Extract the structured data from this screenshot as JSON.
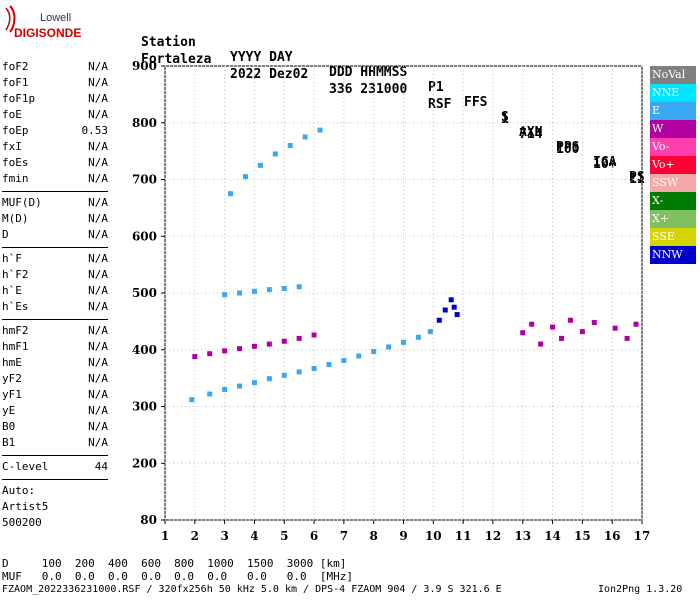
{
  "logo": {
    "line1": "Lowell",
    "line2": "DIGISONDE"
  },
  "header": {
    "row1": [
      "Station",
      "YYYY DAY",
      "DDD HHMMSS",
      "P1",
      "FFS",
      "S",
      "AXN",
      "PPS",
      "IGA",
      "PS"
    ],
    "row2": [
      "Fortaleza",
      "2022 Dez02",
      "336 231000",
      "RSF",
      "1",
      "714",
      "100",
      "10+",
      "11"
    ]
  },
  "parameters": [
    {
      "name": "foF2",
      "value": "N/A"
    },
    {
      "name": "foF1",
      "value": "N/A"
    },
    {
      "name": "foF1p",
      "value": "N/A"
    },
    {
      "name": "foE",
      "value": "N/A"
    },
    {
      "name": "foEp",
      "value": "0.53"
    },
    {
      "name": "fxI",
      "value": "N/A"
    },
    {
      "name": "foEs",
      "value": "N/A"
    },
    {
      "name": "fmin",
      "value": "N/A"
    },
    {
      "name": "MUF(D)",
      "value": "N/A"
    },
    {
      "name": "M(D)",
      "value": "N/A"
    },
    {
      "name": "D",
      "value": "N/A"
    },
    {
      "name": "h`F",
      "value": "N/A"
    },
    {
      "name": "h`F2",
      "value": "N/A"
    },
    {
      "name": "h`E",
      "value": "N/A"
    },
    {
      "name": "h`Es",
      "value": "N/A"
    },
    {
      "name": "hmF2",
      "value": "N/A"
    },
    {
      "name": "hmF1",
      "value": "N/A"
    },
    {
      "name": "hmE",
      "value": "N/A"
    },
    {
      "name": "yF2",
      "value": "N/A"
    },
    {
      "name": "yF1",
      "value": "N/A"
    },
    {
      "name": "yE",
      "value": "N/A"
    },
    {
      "name": "B0",
      "value": "N/A"
    },
    {
      "name": "B1",
      "value": "N/A"
    },
    {
      "name": "C-level",
      "value": "44"
    }
  ],
  "auto": {
    "label": "Auto:",
    "name": "Artist5",
    "version": "500200"
  },
  "legend": [
    {
      "label": "NoVal",
      "color": "#808080"
    },
    {
      "label": "NNE",
      "color": "#00e5ff"
    },
    {
      "label": "E",
      "color": "#3aa8f0"
    },
    {
      "label": "W",
      "color": "#b0009f"
    },
    {
      "label": "Vo-",
      "color": "#ff3fb0"
    },
    {
      "label": "Vo+",
      "color": "#ff0033"
    },
    {
      "label": "SSW",
      "color": "#f5a8a8"
    },
    {
      "label": "X-",
      "color": "#007a00"
    },
    {
      "label": "X+",
      "color": "#80c060"
    },
    {
      "label": "SSE",
      "color": "#d4d400"
    },
    {
      "label": "NNW",
      "color": "#0000cc"
    }
  ],
  "footer": {
    "d_row": "D     100  200  400  600  800  1000  1500  3000 [km]",
    "muf_row": "MUF   0.0  0.0  0.0  0.0  0.0  0.0   0.0   0.0  [MHz]",
    "file_row": "FZAOM_2022336231000.RSF / 320fx256h 50 kHz 5.0 km / DPS-4 FZAOM 904 / 3.9 S 321.6 E",
    "app": "Ion2Png 1.3.20"
  },
  "chart_data": {
    "type": "scatter",
    "x_ticks": [
      "1",
      "2",
      "3",
      "4",
      "5",
      "6",
      "7",
      "8",
      "9",
      "10",
      "11",
      "12",
      "13",
      "14",
      "15",
      "16",
      "17"
    ],
    "y_ticks": [
      "80",
      "200",
      "300",
      "400",
      "500",
      "600",
      "700",
      "800",
      "900"
    ],
    "xlim": [
      1,
      17
    ],
    "ylim": [
      80,
      900
    ],
    "grid": true,
    "series": [
      {
        "name": "E",
        "color": "#3aa8f0",
        "x": [
          1.9,
          2.5,
          3.0,
          3.5,
          4.0,
          4.5,
          5.0,
          5.5,
          6.0,
          6.5,
          7.0,
          7.5,
          8.0,
          8.5,
          9.0,
          9.5,
          9.9
        ],
        "y": [
          312,
          322,
          330,
          336,
          342,
          349,
          355,
          361,
          367,
          374,
          381,
          389,
          397,
          405,
          413,
          422,
          432
        ]
      },
      {
        "name": "W",
        "color": "#b0009f",
        "x": [
          2.0,
          2.5,
          3.0,
          3.5,
          4.0,
          4.5,
          5.0,
          5.5,
          6.0
        ],
        "y": [
          388,
          393,
          398,
          402,
          406,
          410,
          415,
          420,
          426
        ]
      },
      {
        "name": "E",
        "color": "#3aa8f0",
        "x": [
          3.0,
          3.5,
          4.0,
          4.5,
          5.0,
          5.5
        ],
        "y": [
          497,
          500,
          503,
          506,
          508,
          511
        ]
      },
      {
        "name": "E",
        "color": "#3aa8f0",
        "x": [
          3.2,
          3.7,
          4.2,
          4.7,
          5.2,
          5.7,
          6.2
        ],
        "y": [
          675,
          705,
          725,
          745,
          760,
          775,
          787
        ]
      },
      {
        "name": "NNW",
        "color": "#0000cc",
        "x": [
          10.2,
          10.4,
          10.6,
          10.7,
          10.8
        ],
        "y": [
          452,
          470,
          488,
          475,
          462
        ]
      },
      {
        "name": "W",
        "color": "#b0009f",
        "x": [
          13.0,
          13.3,
          13.6,
          14.0,
          14.3,
          14.6,
          15.0,
          15.4,
          16.1,
          16.5,
          16.8
        ],
        "y": [
          430,
          445,
          410,
          440,
          420,
          452,
          432,
          448,
          438,
          420,
          445
        ]
      }
    ]
  }
}
